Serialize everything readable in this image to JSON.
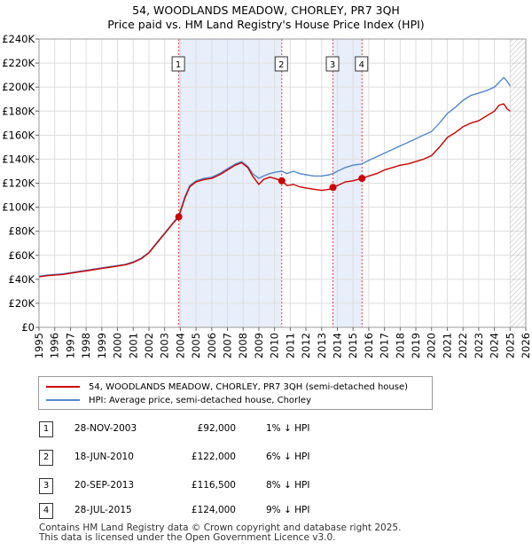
{
  "header": {
    "title": "54, WOODLANDS MEADOW, CHORLEY, PR7 3QH",
    "subtitle": "Price paid vs. HM Land Registry's House Price Index (HPI)"
  },
  "colors": {
    "property": "#cc0000",
    "hpi": "#5588cc",
    "shade": "#e8eefa",
    "grid": "#dddddd",
    "marker": "#cc0000"
  },
  "chart_data": {
    "type": "line",
    "xlim": [
      1995,
      2026
    ],
    "ylim": [
      0,
      240000
    ],
    "ytick_values": [
      0,
      20000,
      40000,
      60000,
      80000,
      100000,
      120000,
      140000,
      160000,
      180000,
      200000,
      220000,
      240000
    ],
    "ytick_labels": [
      "£0",
      "£20K",
      "£40K",
      "£60K",
      "£80K",
      "£100K",
      "£120K",
      "£140K",
      "£160K",
      "£180K",
      "£200K",
      "£220K",
      "£240K"
    ],
    "xtick_values": [
      1995,
      1996,
      1997,
      1998,
      1999,
      2000,
      2001,
      2002,
      2003,
      2004,
      2005,
      2006,
      2007,
      2008,
      2009,
      2010,
      2011,
      2012,
      2013,
      2014,
      2015,
      2016,
      2017,
      2018,
      2019,
      2020,
      2021,
      2022,
      2023,
      2024,
      2025,
      2026
    ],
    "xtick_labels": [
      "1995",
      "1996",
      "1997",
      "1998",
      "1999",
      "2000",
      "2001",
      "2002",
      "2003",
      "2004",
      "2005",
      "2006",
      "2007",
      "2008",
      "2009",
      "2010",
      "2011",
      "2012",
      "2013",
      "2014",
      "2015",
      "2016",
      "2017",
      "2018",
      "2019",
      "2020",
      "2021",
      "2022",
      "2023",
      "2024",
      "2025",
      "2026"
    ],
    "series": [
      {
        "name": "54, WOODLANDS MEADOW, CHORLEY, PR7 3QH (semi-detached house)",
        "x": [
          1995,
          1995.5,
          1996,
          1996.5,
          1997,
          1997.5,
          1998,
          1998.5,
          1999,
          1999.5,
          2000,
          2000.5,
          2001,
          2001.5,
          2002,
          2002.5,
          2003,
          2003.5,
          2003.9,
          2004.3,
          2004.6,
          2005,
          2005.5,
          2006,
          2006.5,
          2007,
          2007.5,
          2007.9,
          2008.3,
          2008.6,
          2009,
          2009.3,
          2009.7,
          2010,
          2010.46,
          2010.8,
          2011.2,
          2011.6,
          2012,
          2012.5,
          2013,
          2013.5,
          2013.72,
          2014,
          2014.5,
          2015,
          2015.57,
          2016,
          2016.5,
          2017,
          2017.5,
          2018,
          2018.5,
          2019,
          2019.5,
          2020,
          2020.5,
          2021,
          2021.5,
          2022,
          2022.5,
          2023,
          2023.5,
          2024,
          2024.3,
          2024.6,
          2024.8,
          2025
        ],
        "y": [
          42000,
          43000,
          43500,
          44000,
          45000,
          46000,
          47000,
          48000,
          49000,
          50000,
          51000,
          52000,
          54000,
          57000,
          62000,
          70000,
          78000,
          86000,
          92000,
          108000,
          117000,
          121000,
          123000,
          124000,
          127000,
          131000,
          135000,
          137000,
          133000,
          126000,
          119000,
          123000,
          125000,
          124000,
          122000,
          118000,
          119000,
          117000,
          116000,
          115000,
          114000,
          115000,
          116500,
          118000,
          121000,
          122000,
          124000,
          126000,
          128000,
          131000,
          133000,
          135000,
          136000,
          138000,
          140000,
          143000,
          150000,
          158000,
          162000,
          167000,
          170000,
          172000,
          176000,
          180000,
          185000,
          186000,
          182000,
          180000
        ]
      },
      {
        "name": "HPI: Average price, semi-detached house, Chorley",
        "x": [
          1995,
          1995.5,
          1996,
          1996.5,
          1997,
          1997.5,
          1998,
          1998.5,
          1999,
          1999.5,
          2000,
          2000.5,
          2001,
          2001.5,
          2002,
          2002.5,
          2003,
          2003.5,
          2003.9,
          2004.3,
          2004.6,
          2005,
          2005.5,
          2006,
          2006.5,
          2007,
          2007.5,
          2007.9,
          2008.3,
          2008.6,
          2009,
          2009.3,
          2009.7,
          2010,
          2010.46,
          2010.8,
          2011.2,
          2011.6,
          2012,
          2012.5,
          2013,
          2013.5,
          2013.72,
          2014,
          2014.5,
          2015,
          2015.57,
          2016,
          2016.5,
          2017,
          2017.5,
          2018,
          2018.5,
          2019,
          2019.5,
          2020,
          2020.5,
          2021,
          2021.5,
          2022,
          2022.5,
          2023,
          2023.5,
          2024,
          2024.3,
          2024.6,
          2024.8,
          2025
        ],
        "y": [
          42500,
          43500,
          44000,
          44500,
          45500,
          46500,
          47500,
          48500,
          49500,
          50500,
          51500,
          52500,
          54500,
          57500,
          62500,
          70500,
          78500,
          86500,
          93000,
          109000,
          118000,
          122000,
          124000,
          125000,
          128000,
          132000,
          136000,
          138000,
          134000,
          128000,
          124000,
          126000,
          128000,
          129000,
          130000,
          128000,
          130000,
          128000,
          127000,
          126000,
          126000,
          127000,
          128000,
          130000,
          133000,
          135000,
          136000,
          139000,
          142000,
          145000,
          148000,
          151000,
          154000,
          157000,
          160000,
          163000,
          170000,
          178000,
          183000,
          189000,
          193000,
          195000,
          197000,
          200000,
          204000,
          208000,
          205000,
          201000
        ]
      }
    ],
    "transactions": [
      {
        "id": "1",
        "x": 2003.9,
        "date": "28-NOV-2003",
        "price": 92000,
        "price_label": "£92,000",
        "hpi_label": "1% ↓ HPI"
      },
      {
        "id": "2",
        "x": 2010.46,
        "date": "18-JUN-2010",
        "price": 122000,
        "price_label": "£122,000",
        "hpi_label": "6% ↓ HPI"
      },
      {
        "id": "3",
        "x": 2013.72,
        "date": "20-SEP-2013",
        "price": 116500,
        "price_label": "£116,500",
        "hpi_label": "8% ↓ HPI"
      },
      {
        "id": "4",
        "x": 2015.57,
        "date": "28-JUL-2015",
        "price": 124000,
        "price_label": "£124,000",
        "hpi_label": "9% ↓ HPI"
      }
    ],
    "shaded_ranges": [
      [
        2003.9,
        2010.46
      ],
      [
        2013.72,
        2015.57
      ]
    ],
    "hatched_from": 2025
  },
  "legend": {
    "property_label": "54, WOODLANDS MEADOW, CHORLEY, PR7 3QH (semi-detached house)",
    "hpi_label": "HPI: Average price, semi-detached house, Chorley"
  },
  "footer": {
    "line1": "Contains HM Land Registry data © Crown copyright and database right 2025.",
    "line2": "This data is licensed under the Open Government Licence v3.0."
  }
}
